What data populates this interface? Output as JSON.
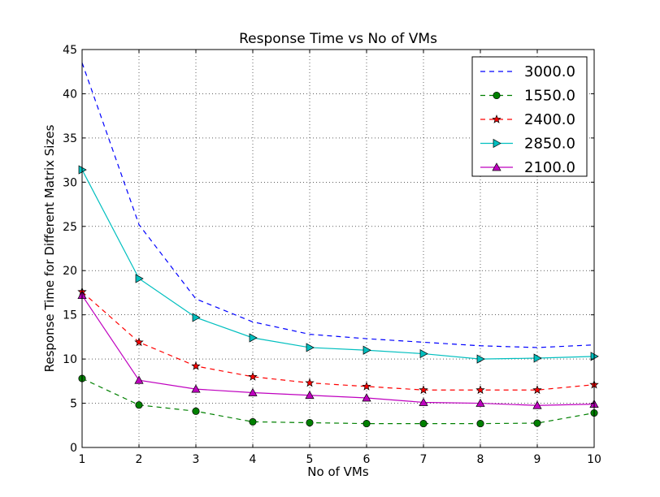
{
  "chart_data": {
    "type": "line",
    "title": "Response Time vs No of VMs",
    "xlabel": "No of VMs",
    "ylabel": "Response Time for Different Matrix Sizes",
    "xlim": [
      1,
      10
    ],
    "ylim": [
      0,
      45
    ],
    "x": [
      1,
      2,
      3,
      4,
      5,
      6,
      7,
      8,
      9,
      10
    ],
    "xticks": [
      "1",
      "2",
      "3",
      "4",
      "5",
      "6",
      "7",
      "8",
      "9",
      "10"
    ],
    "yticks": [
      "0",
      "5",
      "10",
      "15",
      "20",
      "25",
      "30",
      "35",
      "40",
      "45"
    ],
    "grid": true,
    "legend_position": "top-right",
    "series": [
      {
        "name": "3000.0",
        "color": "#0000ff",
        "line_style": "dashed",
        "marker": "none",
        "values": [
          43.5,
          25.2,
          16.8,
          14.2,
          12.8,
          12.3,
          11.9,
          11.5,
          11.3,
          11.6
        ]
      },
      {
        "name": "1550.0",
        "color": "#008000",
        "line_style": "dashed",
        "marker": "circle",
        "values": [
          7.8,
          4.8,
          4.1,
          2.9,
          2.8,
          2.7,
          2.7,
          2.7,
          2.75,
          3.9
        ]
      },
      {
        "name": "2400.0",
        "color": "#ff0000",
        "line_style": "dashed",
        "marker": "star",
        "values": [
          17.6,
          11.9,
          9.2,
          8.0,
          7.3,
          6.9,
          6.5,
          6.5,
          6.5,
          7.1
        ]
      },
      {
        "name": "2850.0",
        "color": "#00bfbf",
        "line_style": "solid",
        "marker": "triangle-right",
        "values": [
          31.4,
          19.1,
          14.7,
          12.4,
          11.3,
          11.0,
          10.6,
          10.0,
          10.1,
          10.3
        ]
      },
      {
        "name": "2100.0",
        "color": "#bf00bf",
        "line_style": "solid",
        "marker": "triangle-up",
        "values": [
          17.2,
          7.6,
          6.6,
          6.2,
          5.9,
          5.6,
          5.1,
          5.0,
          4.75,
          4.9
        ]
      }
    ]
  }
}
